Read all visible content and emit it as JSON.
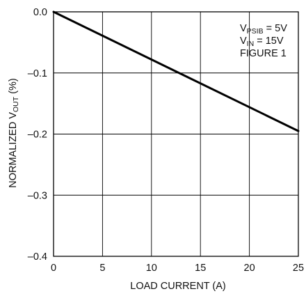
{
  "chart_data": {
    "type": "line",
    "title": "",
    "xlabel": "LOAD CURRENT (A)",
    "ylabel": {
      "main": "NORMALIZED V",
      "sub": "OUT",
      "suffix": " (%)"
    },
    "xlim": [
      0,
      25
    ],
    "ylim": [
      -0.4,
      0.0
    ],
    "x_ticks": [
      0,
      5,
      10,
      15,
      20,
      25
    ],
    "x_tick_labels": [
      "0",
      "5",
      "10",
      "15",
      "20",
      "25"
    ],
    "y_ticks": [
      0.0,
      -0.1,
      -0.2,
      -0.3,
      -0.4
    ],
    "y_tick_labels": [
      "0.0",
      "–0.1",
      "–0.2",
      "–0.3",
      "–0.4"
    ],
    "grid": true,
    "series": [
      {
        "x": [
          0,
          25
        ],
        "y": [
          0.0,
          -0.195
        ]
      }
    ],
    "annotations": [
      {
        "main": "V",
        "sub": "PSIB",
        "suffix": " = 5V"
      },
      {
        "main": "V",
        "sub": "IN",
        "suffix": " = 15V"
      },
      {
        "main": "FIGURE 1",
        "sub": "",
        "suffix": ""
      }
    ],
    "line_color": "#000000",
    "grid_color": "#000000"
  }
}
